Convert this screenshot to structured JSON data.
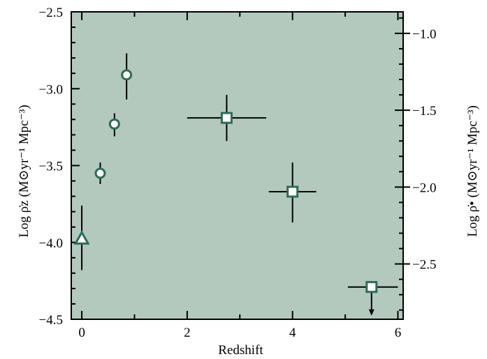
{
  "chart_data": {
    "type": "scatter",
    "title": "",
    "xlabel": "Redshift",
    "ylabel_left": "Log ρ̇z   (M⊙yr⁻¹ Mpc⁻³)",
    "ylabel_right": "Log ρ̇•   (M⊙yr⁻¹ Mpc⁻³)",
    "xlim": [
      -0.2,
      6.1
    ],
    "ylim_left": [
      -4.5,
      -2.5
    ],
    "ylim_right": [
      -2.86,
      -0.86
    ],
    "xticks": [
      0,
      2,
      4,
      6
    ],
    "yticks_left": [
      -4.5,
      -4.0,
      -3.5,
      -3.0,
      -2.5
    ],
    "yticks_left_labels": [
      "-4.5",
      "-4.0",
      "-3.5",
      "-3.0",
      "-2.5"
    ],
    "yticks_right": [
      -2.5,
      -2.0,
      -1.5,
      -1.0
    ],
    "yticks_right_labels": [
      "-2.5",
      "-2.0",
      "-1.5",
      "-1.0"
    ],
    "grid": false,
    "background_color": "#b3c9be",
    "marker_edge_color": "#2e6b55",
    "series": [
      {
        "marker": "triangle",
        "points": [
          {
            "x": 0.0,
            "y": -3.98,
            "xerr": [
              0,
              0
            ],
            "yerr": [
              0.2,
              0.22
            ],
            "upper_limit": false
          }
        ]
      },
      {
        "marker": "circle",
        "points": [
          {
            "x": 0.35,
            "y": -3.55,
            "xerr": [
              0.07,
              0.07
            ],
            "yerr": [
              0.07,
              0.07
            ],
            "upper_limit": false
          },
          {
            "x": 0.62,
            "y": -3.23,
            "xerr": [
              0.07,
              0.07
            ],
            "yerr": [
              0.08,
              0.07
            ],
            "upper_limit": false
          },
          {
            "x": 0.85,
            "y": -2.91,
            "xerr": [
              0.07,
              0.07
            ],
            "yerr": [
              0.16,
              0.14
            ],
            "upper_limit": false
          }
        ]
      },
      {
        "marker": "square",
        "points": [
          {
            "x": 2.75,
            "y": -3.19,
            "xerr": [
              0.75,
              0.75
            ],
            "yerr": [
              0.15,
              0.15
            ],
            "upper_limit": false
          },
          {
            "x": 4.0,
            "y": -3.67,
            "xerr": [
              0.45,
              0.45
            ],
            "yerr": [
              0.2,
              0.19
            ],
            "upper_limit": false
          },
          {
            "x": 5.5,
            "y": -4.29,
            "xerr": [
              0.45,
              0.5
            ],
            "yerr": [
              0,
              0
            ],
            "upper_limit": true
          }
        ]
      }
    ]
  }
}
